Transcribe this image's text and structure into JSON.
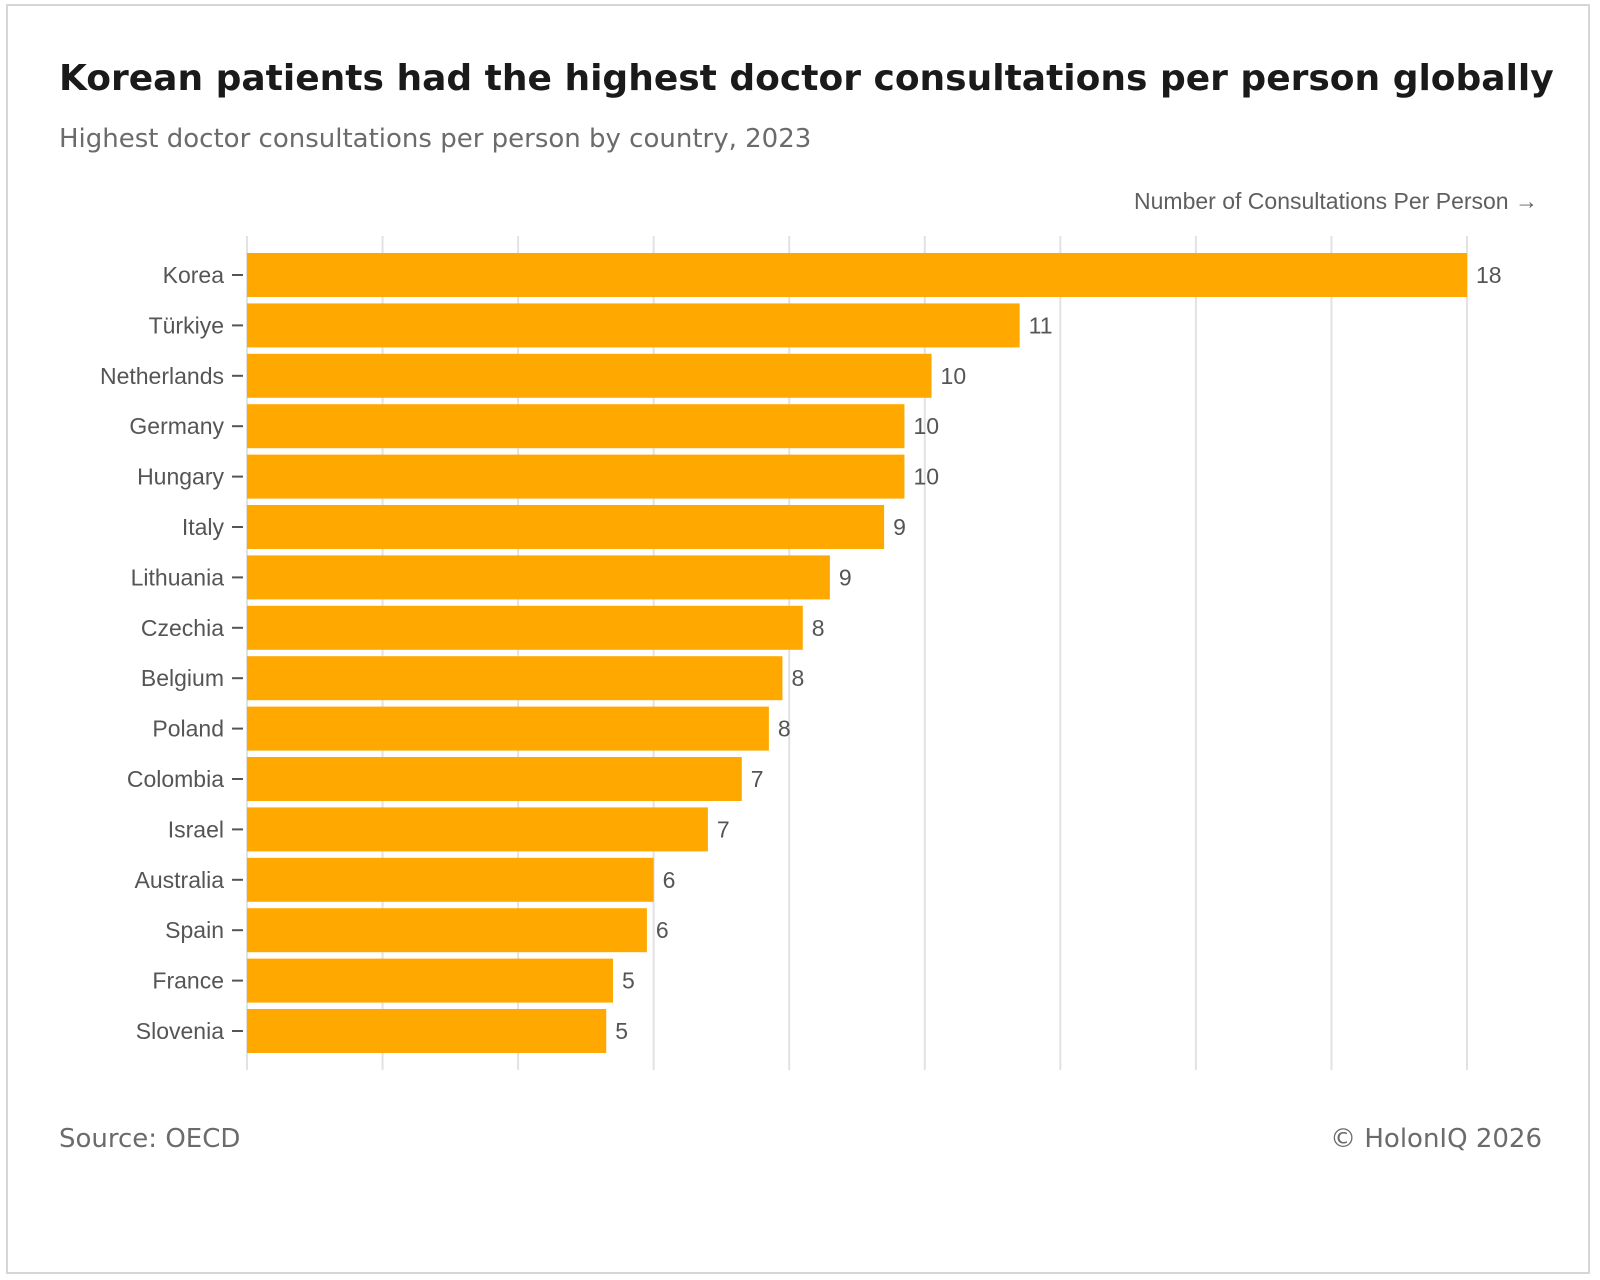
{
  "header": {
    "title": "Korean patients had the highest doctor consultations per person globally",
    "subtitle": "Highest doctor consultations per person by country, 2023"
  },
  "footer": {
    "source": "Source: OECD",
    "copyright": "© HolonIQ 2026"
  },
  "colors": {
    "bar": "#FFA800",
    "grid": "#e2e2e2",
    "label": "#555555"
  },
  "chart_data": {
    "type": "bar",
    "orientation": "horizontal",
    "title": "Korean patients had the highest doctor consultations per person globally",
    "subtitle": "Highest doctor consultations per person by country, 2023",
    "xlabel": "Number of Consultations Per Person →",
    "ylabel": "",
    "xlim": [
      0,
      18
    ],
    "grid": "vertical",
    "categories": [
      "Korea",
      "Türkiye",
      "Netherlands",
      "Germany",
      "Hungary",
      "Italy",
      "Lithuania",
      "Czechia",
      "Belgium",
      "Poland",
      "Colombia",
      "Israel",
      "Australia",
      "Spain",
      "France",
      "Slovenia"
    ],
    "values": [
      18.0,
      11.4,
      10.1,
      9.7,
      9.7,
      9.4,
      8.6,
      8.2,
      7.9,
      7.7,
      7.3,
      6.8,
      6.0,
      5.9,
      5.4,
      5.3
    ],
    "value_labels": [
      "18",
      "11",
      "10",
      "10",
      "10",
      "9",
      "9",
      "8",
      "8",
      "8",
      "7",
      "7",
      "6",
      "6",
      "5",
      "5"
    ]
  }
}
